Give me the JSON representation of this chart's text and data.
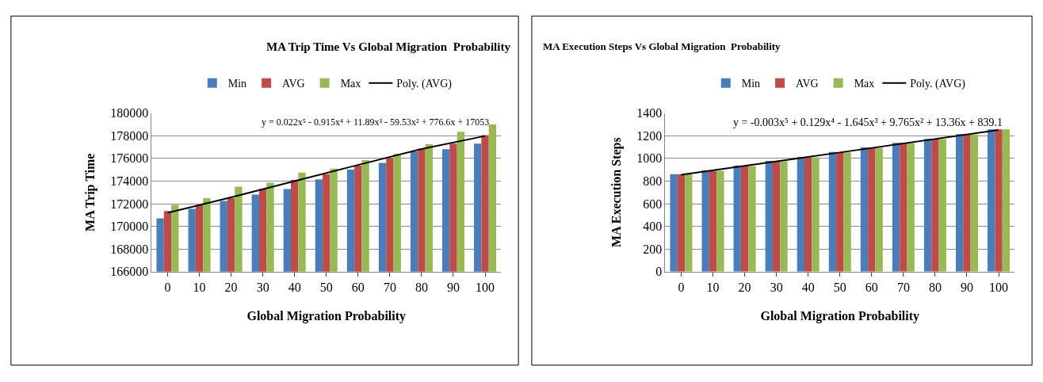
{
  "chart_data": [
    {
      "type": "bar",
      "title": "MA Trip Time Vs Global Migration  Probability",
      "xlabel": "Global Migration Probability",
      "ylabel": "MA Trip Time",
      "categories": [
        "0",
        "10",
        "20",
        "30",
        "40",
        "50",
        "60",
        "70",
        "80",
        "90",
        "100"
      ],
      "series": [
        {
          "name": "Min",
          "color": "#4a7ebb",
          "values": [
            170700,
            171550,
            172250,
            172800,
            173300,
            174150,
            175000,
            175600,
            176600,
            176800,
            177300
          ]
        },
        {
          "name": "AVG",
          "color": "#be4b48",
          "values": [
            171350,
            171900,
            172500,
            173300,
            174100,
            174600,
            175350,
            176000,
            176850,
            177300,
            178050
          ]
        },
        {
          "name": "Max",
          "color": "#98b954",
          "values": [
            171900,
            172500,
            173500,
            173850,
            174750,
            175100,
            175850,
            176400,
            177250,
            178350,
            179000
          ]
        },
        {
          "name": "Poly. (AVG)",
          "type": "line",
          "color": "#000000",
          "x": [
            "0",
            "20",
            "40",
            "60",
            "80",
            "100"
          ],
          "values": [
            171200,
            172560,
            174000,
            175420,
            176830,
            177970
          ]
        }
      ],
      "ylim": [
        166000,
        180000
      ],
      "yticks": [
        166000,
        168000,
        170000,
        172000,
        174000,
        176000,
        178000,
        180000
      ],
      "annotations": [
        "y = 0.022x⁵ - 0.915x⁴ + 11.89x³ - 59.53x² + 776.6x + 17053"
      ],
      "grid": "y",
      "legend": "top"
    },
    {
      "type": "bar",
      "title": "MA Execution Steps Vs Global Migration  Probability",
      "xlabel": "Global Migration Probability",
      "ylabel": "MA Execution Steps",
      "categories": [
        "0",
        "10",
        "20",
        "30",
        "40",
        "50",
        "60",
        "70",
        "80",
        "90",
        "100"
      ],
      "series": [
        {
          "name": "Min",
          "color": "#4a7ebb",
          "values": [
            861,
            893,
            935,
            977,
            1012,
            1056,
            1096,
            1137,
            1172,
            1214,
            1256
          ]
        },
        {
          "name": "AVG",
          "color": "#be4b48",
          "values": [
            860,
            891,
            934,
            976,
            1010,
            1054,
            1095,
            1136,
            1171,
            1212,
            1256
          ]
        },
        {
          "name": "Max",
          "color": "#98b954",
          "values": [
            859,
            890,
            932,
            975,
            1009,
            1053,
            1093,
            1135,
            1170,
            1211,
            1256
          ]
        },
        {
          "name": "Poly. (AVG)",
          "type": "line",
          "color": "#000000",
          "x": [
            "0",
            "50",
            "100"
          ],
          "values": [
            856,
            1052,
            1251
          ]
        }
      ],
      "ylim": [
        0,
        1400
      ],
      "yticks": [
        0,
        200,
        400,
        600,
        800,
        1000,
        1200,
        1400
      ],
      "annotations": [
        "y = -0.003x⁵ + 0.129x⁴ - 1.645x³ + 9.765x² + 13.36x + 839.1"
      ],
      "grid": "y",
      "legend": "top"
    }
  ]
}
